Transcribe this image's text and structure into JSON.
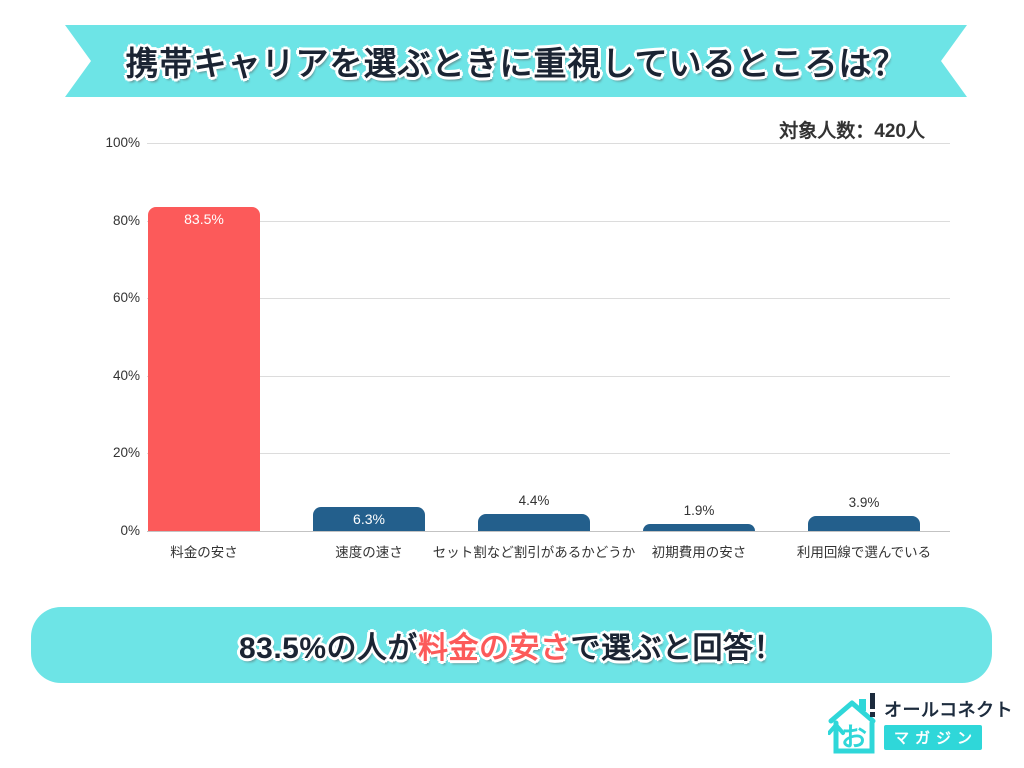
{
  "header": {
    "title": "携帯キャリアを選ぶときに重視しているところは？",
    "sample_size": "対象人数：420人"
  },
  "chart_data": {
    "type": "bar",
    "title": "携帯キャリアを選ぶときに重視しているところは？",
    "categories": [
      "料金の安さ",
      "速度の速さ",
      "セット割など割引があるかどうか",
      "初期費用の安さ",
      "利用回線で選んでいる"
    ],
    "values": [
      83.5,
      6.3,
      4.4,
      1.9,
      3.9
    ],
    "value_labels": [
      "83.5%",
      "6.3%",
      "4.4%",
      "1.9%",
      "3.9%"
    ],
    "bar_colors": [
      "#fc5a5a",
      "#235f8c",
      "#235f8c",
      "#235f8c",
      "#235f8c"
    ],
    "y_ticks": [
      "100%",
      "80%",
      "60%",
      "40%",
      "20%",
      "0%"
    ],
    "ylim": [
      0,
      100
    ],
    "grid": true,
    "legend_position": "none",
    "sample_size": "対象人数：420人"
  },
  "callout": {
    "prefix": "83.5%の人が",
    "highlight": "料金の安さ",
    "suffix": "で選ぶと回答！",
    "highlight_color": "#fc5a5a"
  },
  "logo": {
    "brand": "オールコネクト",
    "magazine": "マガジン",
    "icon_glyph": "お",
    "exclamation": "！"
  },
  "colors": {
    "banner_teal": "#6de4e6",
    "logo_teal": "#2fd7d9",
    "accent_red": "#fc5a5a",
    "bar_blue": "#235f8c",
    "text_dark": "#1b2433",
    "text_gray": "#333333",
    "gridline": "#dcdcdc"
  }
}
